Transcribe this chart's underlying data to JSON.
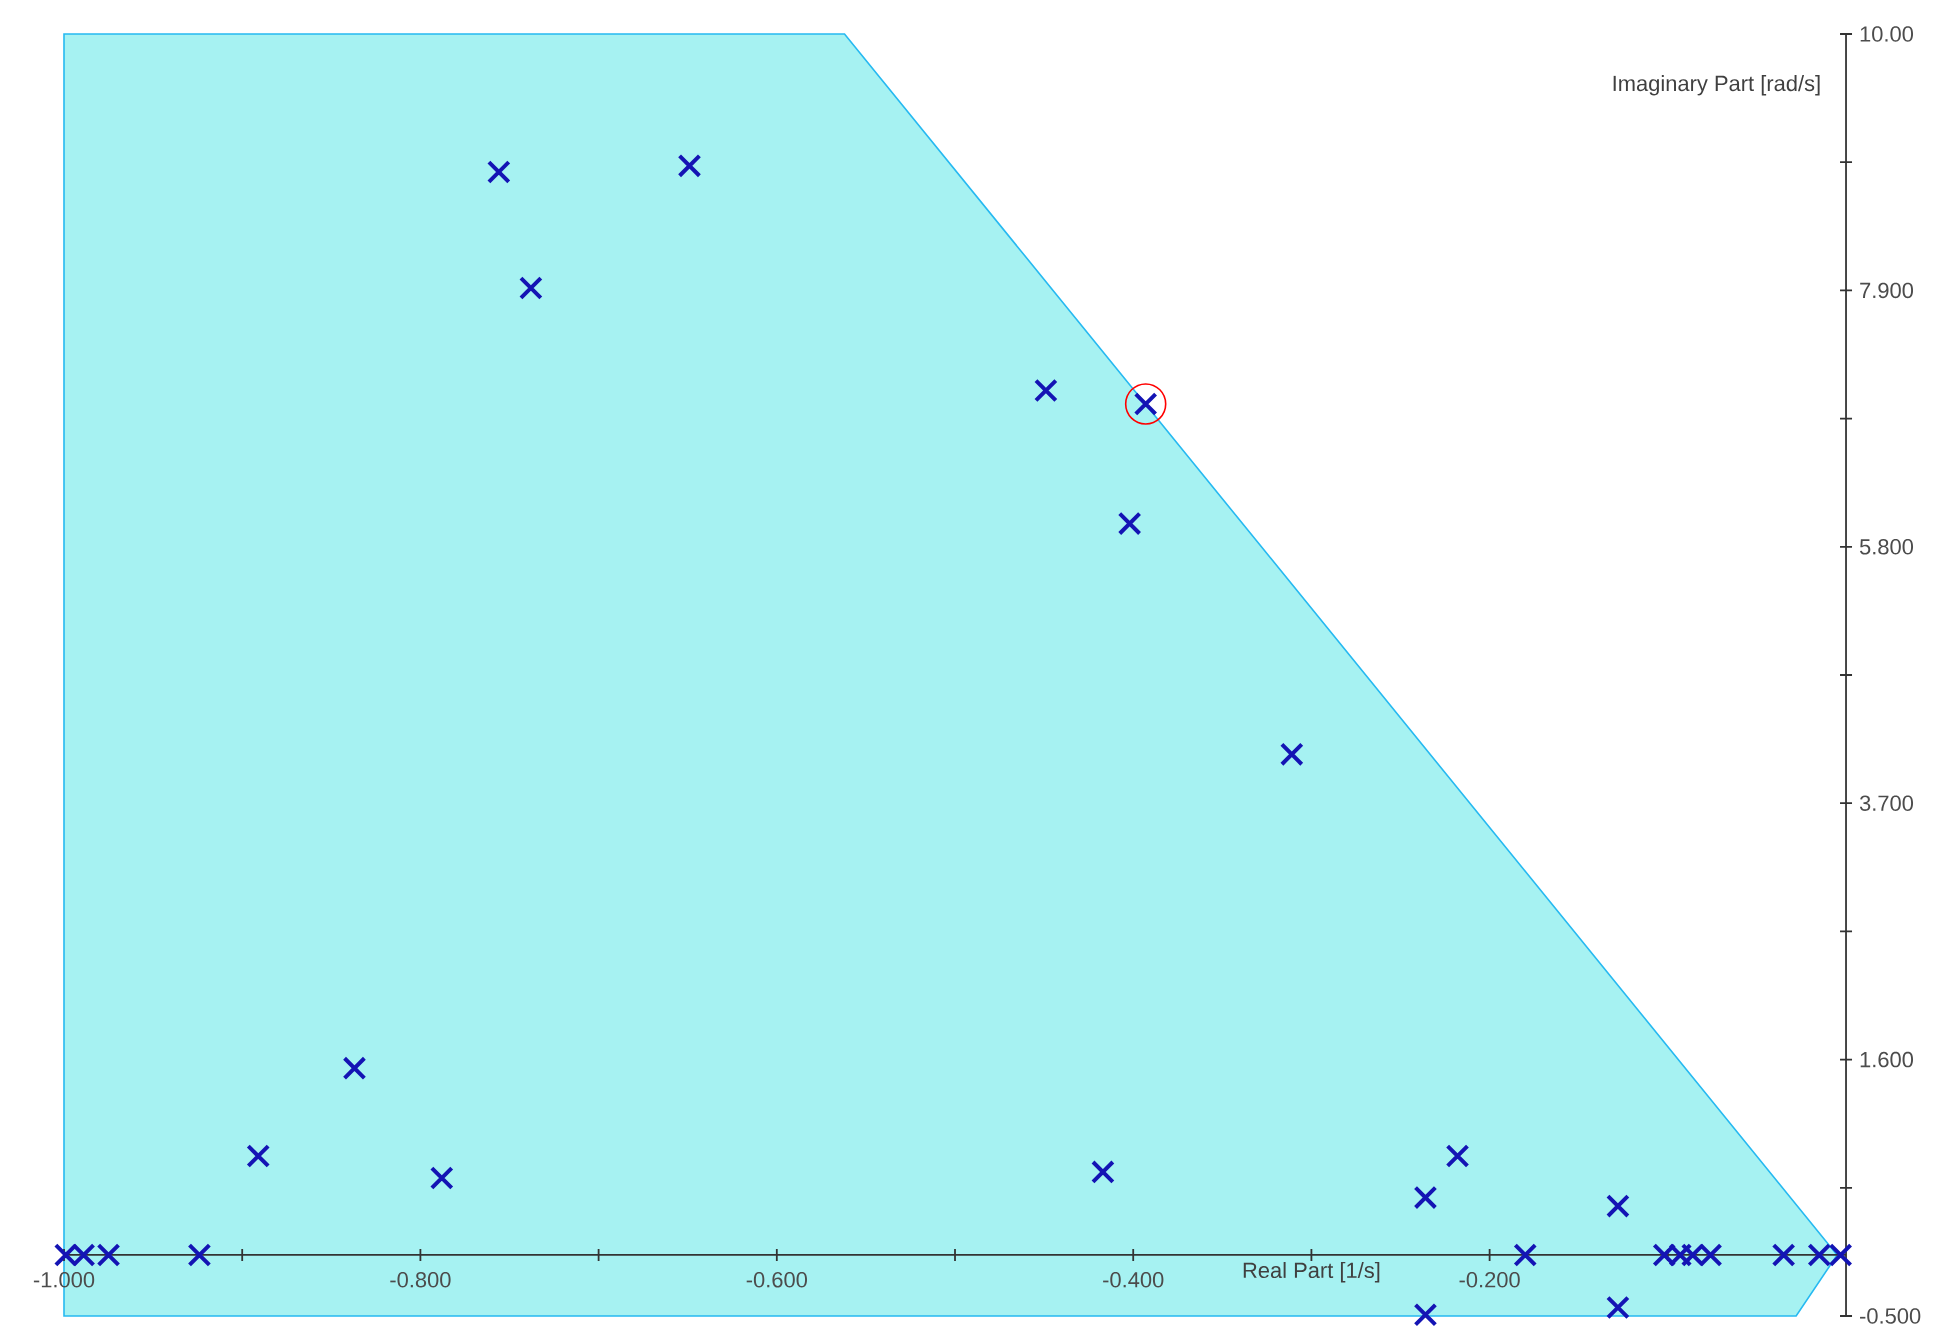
{
  "chart_data": {
    "type": "scatter",
    "xlabel": "Real Part [1/s]",
    "ylabel": "Imaginary Part [rad/s]",
    "xlim": [
      -1.0,
      0
    ],
    "ylim": [
      -0.5,
      10.0
    ],
    "xticks": [
      {
        "value": -1.0,
        "label": "-1.000"
      },
      {
        "value": -0.9,
        "label": null
      },
      {
        "value": -0.8,
        "label": "-0.800"
      },
      {
        "value": -0.7,
        "label": null
      },
      {
        "value": -0.6,
        "label": "-0.600"
      },
      {
        "value": -0.5,
        "label": null
      },
      {
        "value": -0.4,
        "label": "-0.400"
      },
      {
        "value": -0.3,
        "label": null
      },
      {
        "value": -0.2,
        "label": "-0.200"
      },
      {
        "value": -0.1,
        "label": null
      }
    ],
    "yticks": [
      {
        "value": -0.5,
        "label": "-0.500"
      },
      {
        "value": 0.55,
        "label": null
      },
      {
        "value": 1.6,
        "label": "1.600"
      },
      {
        "value": 2.65,
        "label": null
      },
      {
        "value": 3.7,
        "label": "3.700"
      },
      {
        "value": 4.75,
        "label": null
      },
      {
        "value": 5.8,
        "label": "5.800"
      },
      {
        "value": 6.85,
        "label": null
      },
      {
        "value": 7.9,
        "label": "7.900"
      },
      {
        "value": 8.95,
        "label": null
      },
      {
        "value": 10.0,
        "label": "10.00"
      }
    ],
    "series": [
      {
        "type": "area",
        "color": "#a6f2f2",
        "x": [
          -1.0,
          -0.562,
          -0.005,
          -0.028,
          -1.0
        ],
        "values": [
          10.0,
          10.0,
          0,
          -0.5,
          -0.5
        ]
      },
      {
        "marker": "cross",
        "color": "#1414b4",
        "x": [
          -0.756,
          -0.649,
          -0.738,
          -0.449,
          -0.393,
          -0.402,
          -0.311,
          -0.837,
          -0.891,
          -0.788,
          -0.924,
          -0.999,
          -0.989,
          -0.975,
          -0.417,
          -0.236,
          -0.218,
          -0.236,
          -0.18,
          -0.128,
          -0.128,
          -0.102,
          -0.093,
          -0.086,
          -0.076,
          -0.035,
          -0.015,
          -0.003
        ],
        "values": [
          8.87,
          8.92,
          7.92,
          7.08,
          6.97,
          5.99,
          4.1,
          1.53,
          0.81,
          0.63,
          0,
          0,
          0,
          0,
          0.68,
          0.47,
          0.81,
          -0.49,
          0,
          0.4,
          -0.43,
          0,
          0,
          0,
          0,
          0,
          0,
          0
        ]
      },
      {
        "marker": "circle",
        "color": "#ff0000",
        "x": [
          -0.393
        ],
        "values": [
          6.97
        ]
      }
    ]
  }
}
